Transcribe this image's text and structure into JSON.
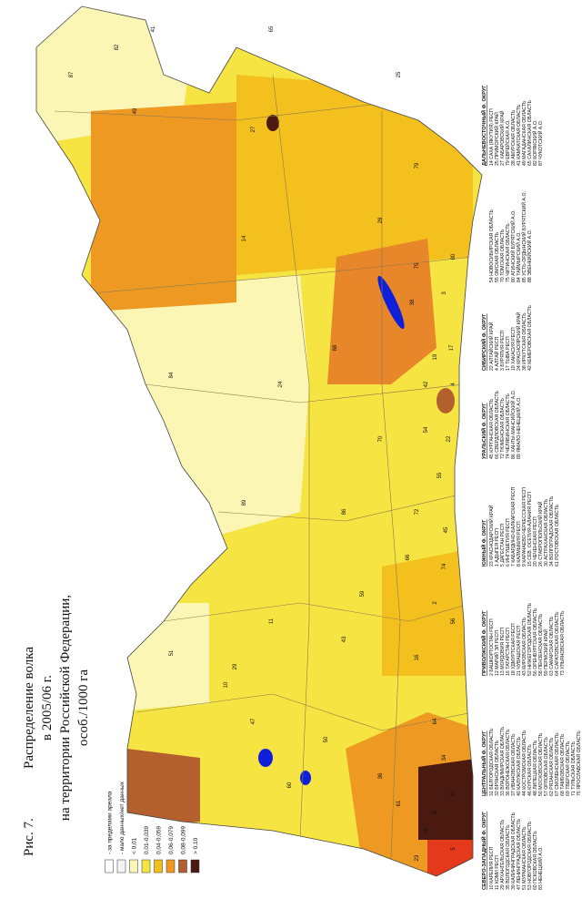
{
  "figure": {
    "label": "Рис. 7.",
    "title_lines": [
      "Распределение волка",
      "в 2005/06 г.",
      "на территории Российской Федерации,",
      "особ./1000 га"
    ]
  },
  "legend": [
    {
      "label": "- за пределами ареала",
      "color": "#ffffff"
    },
    {
      "label": "- мало данных/нет данных",
      "color": "#f4f4f4"
    },
    {
      "label": "< 0,01",
      "color": "#fcf6b4"
    },
    {
      "label": "0,01-0,039",
      "color": "#f6e443"
    },
    {
      "label": "0,04-0,059",
      "color": "#f3c01e"
    },
    {
      "label": "0,06-0,079",
      "color": "#ee9a22"
    },
    {
      "label": "0,08-0,099",
      "color": "#b3602e"
    },
    {
      "label": "> 0,10",
      "color": "#4a1a10"
    }
  ],
  "districts": [
    {
      "title": "СЕВЕРО-ЗАПАДНЫЙ Ф. ОКРУГ",
      "regions": [
        "10 КАРЕЛИЯ РЕСП",
        "11 КОМИ РЕСП",
        "29 АРХАНГЕЛЬСКАЯ ОБЛАСТЬ",
        "35 ВОЛОГОДСКАЯ ОБЛАСТЬ",
        "39 КАЛИНИНГРАДСКАЯ ОБЛАСТЬ",
        "47 ЛЕНИНГРАДСКАЯ ОБЛАСТЬ",
        "51 МУРМАНСКАЯ ОБЛАСТЬ",
        "53 НОВГОРОДСКАЯ ОБЛАСТЬ",
        "60 ПСКОВСКАЯ ОБЛАСТЬ",
        "83 НЕНЕЦКИЙ А.О."
      ]
    },
    {
      "title": "ЦЕНТРАЛЬНЫЙ Ф. ОКРУГ",
      "regions": [
        "31 БЕЛГОРОДСКАЯ ОБЛАСТЬ",
        "32 БРЯНСКАЯ ОБЛАСТЬ",
        "33 ВЛАДИМИРСКАЯ ОБЛАСТЬ",
        "36 ВОРОНЕЖСКАЯ ОБЛАСТЬ",
        "37 ИВАНОВСКАЯ ОБЛАСТЬ",
        "40 КАЛУЖСКАЯ ОБЛАСТЬ",
        "44 КОСТРОМСКАЯ ОБЛАСТЬ",
        "46 КУРСКАЯ ОБЛАСТЬ",
        "48 ЛИПЕЦКАЯ ОБЛАСТЬ",
        "50 МОСКОВСКАЯ ОБЛАСТЬ",
        "57 ОРЛОВСКАЯ ОБЛАСТЬ",
        "62 РЯЗАНСКАЯ ОБЛАСТЬ",
        "67 СМОЛЕНСКАЯ ОБЛАСТЬ",
        "68 ТАМБОВСКАЯ ОБЛАСТЬ",
        "69 ТВЕРСКАЯ ОБЛАСТЬ",
        "71 ТУЛЬСКАЯ ОБЛАСТЬ",
        "76 ЯРОСЛАВСКАЯ ОБЛАСТЬ"
      ]
    },
    {
      "title": "ПРИВОЛЖСКИЙ Ф. ОКРУГ",
      "regions": [
        "2 БАШКОРТОСТАН РЕСП",
        "12 МАРИЙ ЭЛ РЕСП",
        "13 МОРДОВИЯ РЕСП",
        "16 ТАТАРСТАН РЕСП",
        "18 УДМУРТСКАЯ РЕСП",
        "21 ЧУВАШСКАЯ РЕСП",
        "43 КИРОВСКАЯ ОБЛАСТЬ",
        "52 НИЖЕГОРОДСКАЯ ОБЛАСТЬ",
        "56 ОРЕНБУРГСКАЯ ОБЛАСТЬ",
        "58 ПЕНЗЕНСКАЯ ОБЛАСТЬ",
        "59 ПЕРМСКИЙ КРАЙ",
        "63 САМАРСКАЯ ОБЛАСТЬ",
        "64 САРАТОВСКАЯ ОБЛАСТЬ",
        "73 УЛЬЯНОВСКАЯ ОБЛАСТЬ"
      ]
    },
    {
      "title": "ЮЖНЫЙ Ф. ОКРУГ",
      "regions": [
        "23 КРАСНОДАРСКИЙ КРАЙ",
        "1 АДЫГЕЯ РЕСП",
        "5 ДАГЕСТАН РЕСП",
        "6 ИНГУШЕТИЯ РЕСП",
        "7 КАБАРДИНО-БАЛКАРСКАЯ РЕСП",
        "8 КАЛМЫКИЯ РЕСП",
        "9 КАРАЧАЕВО-ЧЕРКЕССКАЯ РЕСП",
        "15 СЕВ. ОСЕТИЯ-АЛАНИЯ РЕСП",
        "20 ЧЕЧЕНСКАЯ РЕСП",
        "26 СТАВРОПОЛЬСКИЙ КРАЙ",
        "30 АСТРАХАНСКАЯ ОБЛАСТЬ",
        "34 ВОЛГОГРАДСКАЯ ОБЛАСТЬ",
        "61 РОСТОВСКАЯ ОБЛАСТЬ"
      ]
    },
    {
      "title": "УРАЛЬСКИЙ Ф. ОКРУГ",
      "regions": [
        "45 КУРГАНСКАЯ ОБЛАСТЬ",
        "66 СВЕРДЛОВСКАЯ ОБЛАСТЬ",
        "72 ТЮМЕНСКАЯ ОБЛАСТЬ",
        "74 ЧЕЛЯБИНСКАЯ ОБЛАСТЬ",
        "86 ХАНТЫ-МАНСИЙСКИЙ А.О.",
        "89 ЯМАЛО-НЕНЕЦКИЙ А.О."
      ]
    },
    {
      "title": "СИБИРСКИЙ Ф. ОКРУГ",
      "regions": [
        "22 АЛТАЙСКИЙ КРАЙ",
        "4 АЛТАЙ РЕСП",
        "3 БУРЯТИЯ РЕСП",
        "17 ТЫВА РЕСП",
        "19 ХАКАСИЯ РЕСП",
        "24 КРАСНОЯРСКИЙ КРАЙ",
        "38 ИРКУТСКАЯ ОБЛАСТЬ",
        "42 КЕМЕРОВСКАЯ ОБЛАСТЬ",
        "54 НОВОСИБИРСКАЯ ОБЛАСТЬ",
        "55 ОМСКАЯ ОБЛАСТЬ",
        "70 ТОМСКАЯ ОБЛАСТЬ",
        "75 ЧИТИНСКАЯ ОБЛАСТЬ",
        "80 АГИНСКИЙ БУРЯТСКИЙ А.О.",
        "84 ТАЙМЫРСКИЙ А.О.",
        "85 УСТЬ-ОРДЫНСКИЙ БУРЯТСКИЙ А.О.",
        "88 ЭВЕНКИЙСКИЙ А.О."
      ]
    },
    {
      "title": "ДАЛЬНЕВОСТОЧНЫЙ Ф. ОКРУГ",
      "regions": [
        "14 САХА (ЯКУТИЯ) РЕСП",
        "25 ПРИМОРСКИЙ КРАЙ",
        "27 ХАБАРОВСКИЙ КРАЙ",
        "79 ЕВРЕЙСКАЯ А.О.",
        "28 АМУРСКАЯ ОБЛАСТЬ",
        "41 КАМЧАТСКАЯ ОБЛАСТЬ",
        "49 МАГАДАНСКАЯ ОБЛАСТЬ",
        "65 САХАЛИНСКАЯ ОБЛАСТЬ",
        "82 КОРЯКСКИЙ А.О.",
        "87 ЧУКОТСКИЙ А.О."
      ]
    }
  ],
  "map_labels": [
    "87",
    "82",
    "41",
    "49",
    "14",
    "28",
    "75",
    "27",
    "79",
    "25",
    "65",
    "24",
    "88",
    "84",
    "70",
    "86",
    "89",
    "11",
    "29",
    "43",
    "59",
    "66",
    "72",
    "54",
    "42",
    "22",
    "55",
    "4",
    "17",
    "19",
    "38",
    "3",
    "80",
    "16",
    "2",
    "56",
    "74",
    "45",
    "64",
    "34",
    "30",
    "8",
    "5",
    "61",
    "23",
    "26",
    "10",
    "51",
    "47",
    "60",
    "50",
    "36"
  ]
}
